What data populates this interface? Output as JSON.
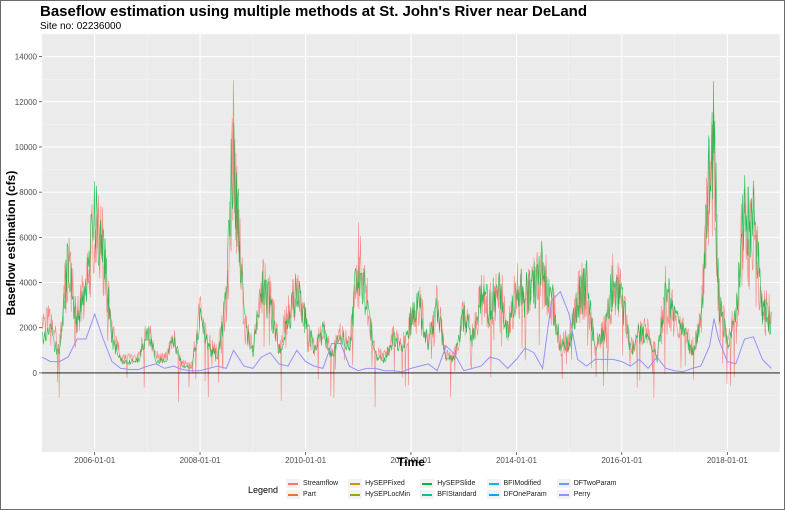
{
  "title": "Baseflow estimation using multiple methods at St. John's River near DeLand",
  "subtitle": "Site no: 02236000",
  "chart_data": {
    "type": "line",
    "title": "Baseflow estimation using multiple methods at St. John's River near DeLand",
    "subtitle": "Site no: 02236000",
    "xlabel": "Time",
    "ylabel": "Baseflow estimation (cfs)",
    "xlim": [
      "2005-01-01",
      "2019-01-01"
    ],
    "ylim": [
      -3500,
      15000
    ],
    "x_ticks": [
      "2006-01-01",
      "2008-01-01",
      "2010-01-01",
      "2012-01-01",
      "2014-01-01",
      "2016-01-01",
      "2018-01-01"
    ],
    "y_ticks": [
      0,
      2000,
      4000,
      6000,
      8000,
      10000,
      12000,
      14000
    ],
    "grid": true,
    "legend_title": "Legend",
    "legend_position": "bottom",
    "envelope_dates": [
      "2005-01-01",
      "2005-03-01",
      "2005-05-01",
      "2005-07-01",
      "2005-09-01",
      "2005-11-01",
      "2006-01-01",
      "2006-03-01",
      "2006-05-01",
      "2006-07-01",
      "2006-09-01",
      "2006-11-01",
      "2007-01-01",
      "2007-03-01",
      "2007-05-01",
      "2007-07-01",
      "2007-09-01",
      "2007-11-01",
      "2008-01-01",
      "2008-03-01",
      "2008-05-01",
      "2008-07-01",
      "2008-08-20",
      "2008-09-10",
      "2008-11-01",
      "2009-01-01",
      "2009-03-01",
      "2009-05-01",
      "2009-07-01",
      "2009-09-01",
      "2009-11-01",
      "2010-01-01",
      "2010-03-01",
      "2010-05-01",
      "2010-07-01",
      "2010-09-01",
      "2010-11-01",
      "2011-01-01",
      "2011-03-01",
      "2011-05-01",
      "2011-07-01",
      "2011-09-01",
      "2011-11-01",
      "2012-01-01",
      "2012-03-01",
      "2012-05-01",
      "2012-07-01",
      "2012-09-01",
      "2012-11-01",
      "2013-01-01",
      "2013-03-01",
      "2013-05-01",
      "2013-07-01",
      "2013-09-01",
      "2013-11-01",
      "2014-01-01",
      "2014-03-01",
      "2014-05-01",
      "2014-07-01",
      "2014-09-01",
      "2014-11-01",
      "2015-01-01",
      "2015-03-01",
      "2015-05-01",
      "2015-07-01",
      "2015-09-01",
      "2015-11-01",
      "2016-01-01",
      "2016-03-01",
      "2016-05-01",
      "2016-07-01",
      "2016-09-01",
      "2016-11-01",
      "2017-01-01",
      "2017-03-01",
      "2017-05-01",
      "2017-07-01",
      "2017-09-01",
      "2017-10-01",
      "2017-11-01",
      "2018-01-01",
      "2018-03-01",
      "2018-05-01",
      "2018-07-01",
      "2018-09-01",
      "2018-11-01"
    ],
    "series": [
      {
        "name": "Streamflow",
        "color": "#F8766D",
        "values": [
          2500,
          3600,
          1500,
          6800,
          3500,
          5000,
          9400,
          7200,
          2500,
          1000,
          900,
          1000,
          2800,
          1000,
          900,
          2100,
          600,
          500,
          3500,
          1800,
          1400,
          4500,
          14500,
          10500,
          3500,
          1500,
          5200,
          4500,
          1500,
          3500,
          5100,
          3200,
          1500,
          2800,
          1200,
          2500,
          1600,
          6900,
          4400,
          1200,
          1000,
          2300,
          1500,
          3300,
          4000,
          2000,
          4200,
          1000,
          1200,
          3600,
          2200,
          4500,
          4000,
          5500,
          2500,
          5000,
          4800,
          5200,
          6200,
          4600,
          1800,
          2000,
          4500,
          5500,
          1500,
          2700,
          5500,
          4800,
          1500,
          2600,
          2400,
          1100,
          5200,
          3300,
          2600,
          1500,
          2900,
          12500,
          14800,
          4500,
          2000,
          3500,
          9800,
          9000,
          4000,
          3500
        ]
      },
      {
        "name": "HySEPSlide",
        "color": "#00BA38",
        "values": [
          1800,
          2200,
          1000,
          6500,
          3000,
          4500,
          9200,
          7000,
          2000,
          700,
          600,
          700,
          2500,
          700,
          600,
          1800,
          400,
          300,
          3000,
          1400,
          1000,
          4000,
          14000,
          10000,
          3000,
          1200,
          4800,
          4000,
          1200,
          3000,
          4700,
          3000,
          1200,
          2400,
          900,
          2200,
          1300,
          6600,
          4000,
          900,
          700,
          2000,
          1200,
          3000,
          3800,
          1700,
          3900,
          700,
          900,
          3300,
          1900,
          4200,
          3800,
          5100,
          2200,
          4800,
          4400,
          5000,
          6000,
          4400,
          1500,
          1700,
          4200,
          5200,
          1200,
          2400,
          5200,
          4500,
          1200,
          2300,
          2100,
          800,
          5000,
          3000,
          2300,
          1200,
          2600,
          12000,
          14200,
          4200,
          1700,
          3200,
          9600,
          8800,
          3700,
          3000
        ]
      },
      {
        "name": "Perry",
        "color": "#9590FF",
        "values": [
          700,
          500,
          500,
          700,
          1500,
          1500,
          2600,
          1500,
          500,
          200,
          150,
          150,
          300,
          400,
          200,
          300,
          150,
          100,
          100,
          200,
          300,
          200,
          1000,
          800,
          300,
          200,
          700,
          900,
          400,
          300,
          1000,
          500,
          300,
          200,
          1300,
          1300,
          300,
          100,
          200,
          200,
          100,
          100,
          50,
          200,
          300,
          400,
          100,
          1200,
          800,
          100,
          200,
          300,
          700,
          600,
          200,
          600,
          1100,
          900,
          200,
          3200,
          3600,
          2600,
          600,
          300,
          600,
          600,
          600,
          500,
          300,
          600,
          200,
          700,
          200,
          100,
          50,
          200,
          300,
          1200,
          2400,
          1500,
          500,
          400,
          1500,
          1600,
          600,
          200
        ]
      }
    ],
    "legend_entries": [
      {
        "name": "Streamflow",
        "color": "#F8766D"
      },
      {
        "name": "Part",
        "color": "#E8752B"
      },
      {
        "name": "HySEPFixed",
        "color": "#D39200"
      },
      {
        "name": "HySEPLocMin",
        "color": "#93AA00"
      },
      {
        "name": "HySEPSlide",
        "color": "#00BA38"
      },
      {
        "name": "BFIStandard",
        "color": "#00C19F"
      },
      {
        "name": "BFIModified",
        "color": "#00B9E3"
      },
      {
        "name": "DFOneParam",
        "color": "#00A6FF"
      },
      {
        "name": "DFTwoParam",
        "color": "#619CFF"
      },
      {
        "name": "Perry",
        "color": "#9590FF"
      }
    ],
    "colors": {
      "panel": "#EBEBEB",
      "grid": "#FFFFFF",
      "zero_line": "#000000"
    }
  }
}
